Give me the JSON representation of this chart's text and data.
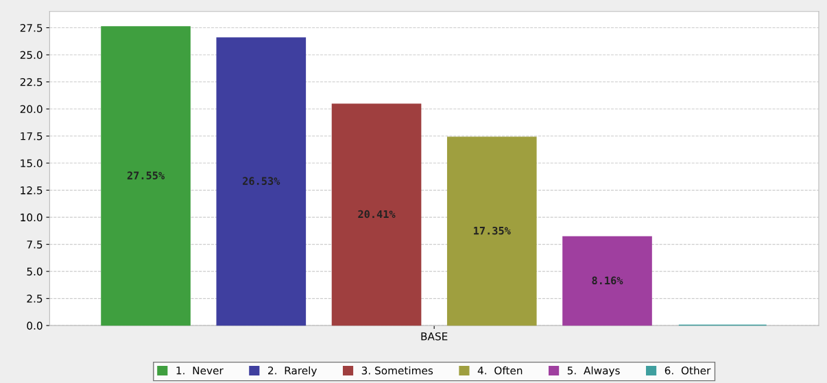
{
  "chart_data": {
    "type": "bar",
    "categories": [
      "BASE"
    ],
    "series": [
      {
        "name": "1.  Never",
        "color": "#3f9f3f",
        "values": [
          27.55
        ],
        "value_labels": [
          "27.55%"
        ]
      },
      {
        "name": "2.  Rarely",
        "color": "#3f3f9f",
        "values": [
          26.53
        ],
        "value_labels": [
          "26.53%"
        ]
      },
      {
        "name": "3. Sometimes",
        "color": "#9f3f3f",
        "values": [
          20.41
        ],
        "value_labels": [
          "20.41%"
        ]
      },
      {
        "name": "4.  Often",
        "color": "#9f9f3f",
        "values": [
          17.35
        ],
        "value_labels": [
          "17.35%"
        ]
      },
      {
        "name": "5.  Always",
        "color": "#9f3f9f",
        "values": [
          8.16
        ],
        "value_labels": [
          "8.16%"
        ]
      },
      {
        "name": "6.  Other",
        "color": "#3f9f9f",
        "values": [
          0
        ],
        "value_labels": [
          null
        ]
      }
    ],
    "ylim": [
      0,
      29
    ],
    "yticks": [
      {
        "value": 0,
        "label": "0.0"
      },
      2.5,
      {
        "value": 5,
        "label": "5.0"
      },
      7.5,
      {
        "value": 10,
        "label": "10.0"
      },
      12.5,
      {
        "value": 15,
        "label": "15.0"
      },
      17.5,
      {
        "value": 20,
        "label": "20.0"
      },
      22.5,
      {
        "value": 25,
        "label": "25.0"
      },
      27.5
    ],
    "grid": "y",
    "legend": "bottom"
  }
}
